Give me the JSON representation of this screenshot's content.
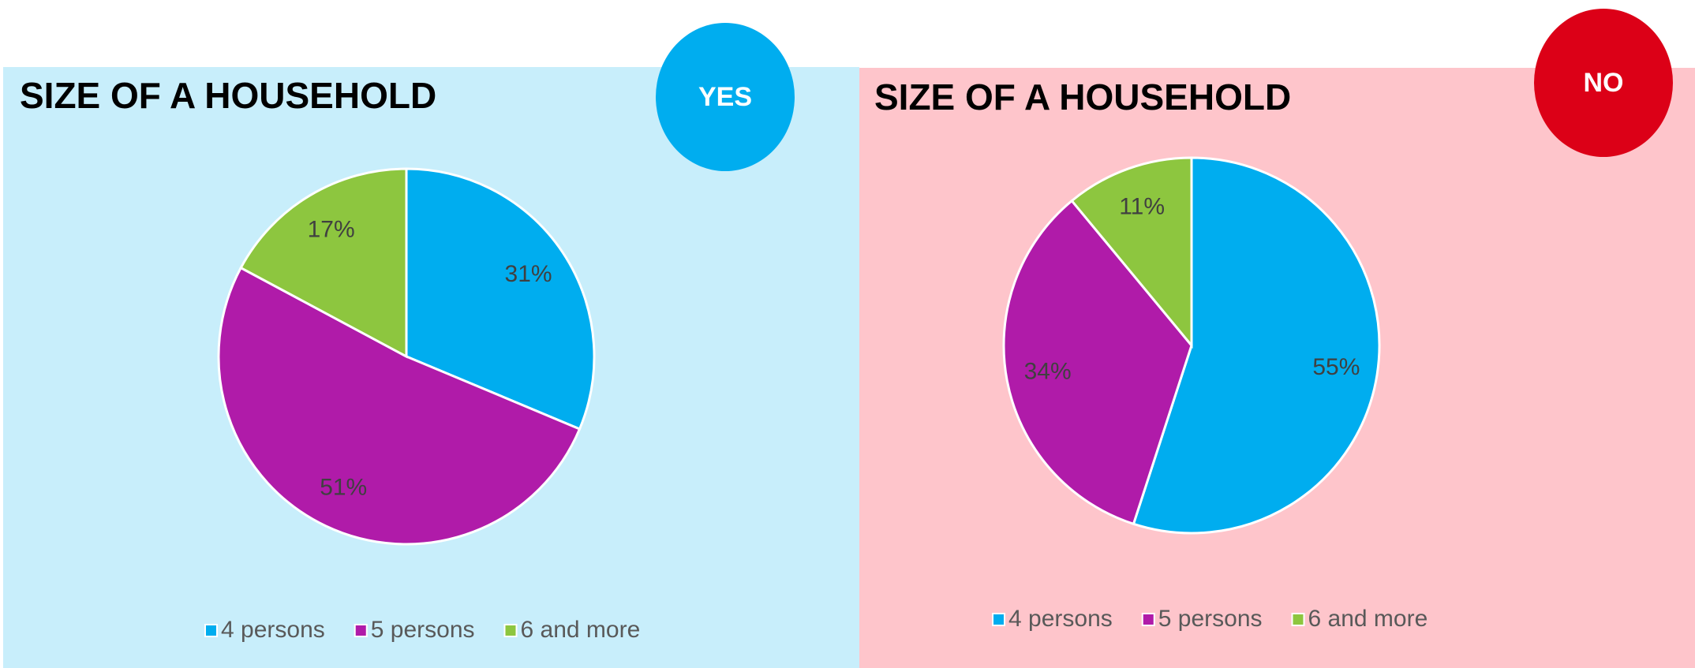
{
  "chart_data": [
    {
      "type": "pie",
      "title": "SIZE OF A HOUSEHOLD",
      "badge": "YES",
      "badge_color": "#00adef",
      "categories": [
        "4 persons",
        "5 persons",
        "6 and more"
      ],
      "values": [
        31,
        51,
        17
      ],
      "value_labels": [
        "31%",
        "51%",
        "17%"
      ],
      "colors": [
        "#00adef",
        "#b01ba9",
        "#8dc63f"
      ],
      "legend": "bottom"
    },
    {
      "type": "pie",
      "title": "SIZE OF A HOUSEHOLD",
      "badge": "NO",
      "badge_color": "#dc0017",
      "categories": [
        "4 persons",
        "5 persons",
        "6 and more"
      ],
      "values": [
        55,
        34,
        11
      ],
      "value_labels": [
        "55%",
        "34%",
        "11%"
      ],
      "colors": [
        "#00adef",
        "#b01ba9",
        "#8dc63f"
      ],
      "legend": "bottom"
    }
  ]
}
